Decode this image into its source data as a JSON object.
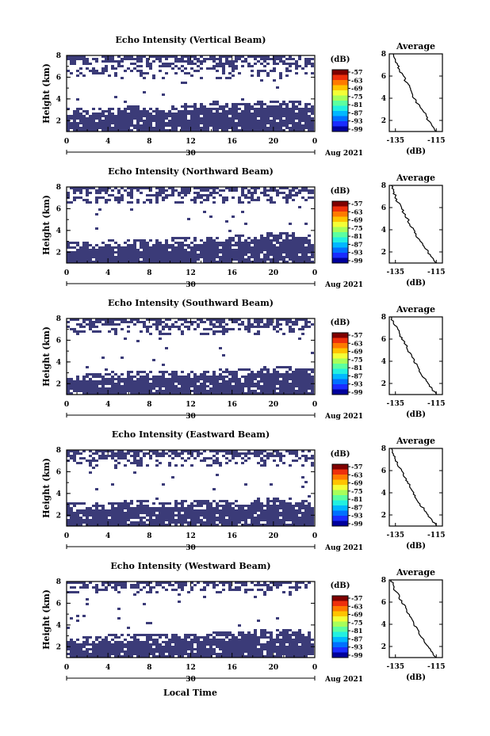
{
  "figure": {
    "xlabel_global": "Local Time",
    "cbar_unit": "(dB)",
    "cbar_ticks": [
      "-57",
      "-63",
      "-69",
      "-75",
      "-81",
      "-87",
      "-93",
      "-99"
    ],
    "cbar_colors": [
      "#7f0000",
      "#ee2f0c",
      "#ff7a00",
      "#ffc400",
      "#f4ff36",
      "#a8ff5a",
      "#5cffa0",
      "#22f0e0",
      "#00b8ff",
      "#0070ff",
      "#1a2cff",
      "#00009c"
    ],
    "fill_color": "#3b3b78",
    "date_label": "Aug 2021",
    "day_label": "30"
  },
  "chart_data": [
    {
      "type": "heatmap",
      "title": "Echo Intensity (Vertical Beam)",
      "ylabel": "Height (km)",
      "x_ticks": [
        "0",
        "4",
        "8",
        "12",
        "16",
        "20",
        "0"
      ],
      "y_ticks": [
        "2",
        "4",
        "6",
        "8"
      ],
      "xlim": [
        0,
        24
      ],
      "ylim": [
        1,
        8
      ],
      "cbar_range": [
        -99,
        -57
      ],
      "dense_top_km": [
        3.0,
        3.0,
        3.0,
        3.3,
        3.1,
        3.2,
        3.5,
        3.6,
        3.6,
        3.6,
        3.8,
        3.8,
        3.6
      ],
      "sparse_band_km": [
        6.0,
        8.0
      ],
      "average_profile": {
        "title": "Average",
        "xlabel": "(dB)",
        "x_ticks": [
          "-135",
          "-115"
        ],
        "y_ticks": [
          "2",
          "4",
          "6",
          "8"
        ],
        "xlim": [
          -138,
          -112
        ],
        "ylim": [
          1,
          8
        ],
        "heights_km": [
          8.0,
          7.5,
          7.0,
          6.5,
          6.0,
          5.5,
          5.0,
          4.5,
          4.0,
          3.5,
          3.0,
          2.5,
          2.0,
          1.5,
          1.0
        ],
        "values_db": [
          -136,
          -135,
          -134,
          -133,
          -131,
          -130,
          -128,
          -127,
          -126,
          -124,
          -122,
          -120,
          -119,
          -117,
          -115
        ]
      }
    },
    {
      "type": "heatmap",
      "title": "Echo Intensity (Northward Beam)",
      "ylabel": "Height (km)",
      "x_ticks": [
        "0",
        "4",
        "8",
        "12",
        "16",
        "20",
        "0"
      ],
      "y_ticks": [
        "2",
        "4",
        "6",
        "8"
      ],
      "xlim": [
        0,
        24
      ],
      "ylim": [
        1,
        8
      ],
      "cbar_range": [
        -99,
        -57
      ],
      "dense_top_km": [
        2.8,
        2.8,
        3.0,
        3.1,
        3.0,
        3.2,
        3.3,
        3.3,
        3.4,
        3.5,
        3.7,
        3.7,
        3.4
      ],
      "sparse_band_km": [
        6.5,
        8.0
      ],
      "average_profile": {
        "title": "Average",
        "xlabel": "(dB)",
        "x_ticks": [
          "-135",
          "-115"
        ],
        "y_ticks": [
          "2",
          "4",
          "6",
          "8"
        ],
        "xlim": [
          -138,
          -112
        ],
        "ylim": [
          1,
          8
        ],
        "heights_km": [
          8.0,
          7.5,
          7.0,
          6.5,
          6.0,
          5.5,
          5.0,
          4.5,
          4.0,
          3.5,
          3.0,
          2.5,
          2.0,
          1.5,
          1.0
        ],
        "values_db": [
          -137,
          -136,
          -135,
          -134,
          -132,
          -131,
          -129,
          -128,
          -126,
          -125,
          -123,
          -121,
          -119,
          -117,
          -115
        ]
      }
    },
    {
      "type": "heatmap",
      "title": "Echo Intensity (Southward Beam)",
      "ylabel": "Height (km)",
      "x_ticks": [
        "0",
        "4",
        "8",
        "12",
        "16",
        "20",
        "0"
      ],
      "y_ticks": [
        "2",
        "4",
        "6",
        "8"
      ],
      "xlim": [
        0,
        24
      ],
      "ylim": [
        1,
        8
      ],
      "cbar_range": [
        -99,
        -57
      ],
      "dense_top_km": [
        2.7,
        2.8,
        2.9,
        3.0,
        3.0,
        3.1,
        3.2,
        3.2,
        3.3,
        3.3,
        3.5,
        3.5,
        3.3
      ],
      "sparse_band_km": [
        6.5,
        8.0
      ],
      "average_profile": {
        "title": "Average",
        "xlabel": "(dB)",
        "x_ticks": [
          "-135",
          "-115"
        ],
        "y_ticks": [
          "2",
          "4",
          "6",
          "8"
        ],
        "xlim": [
          -138,
          -112
        ],
        "ylim": [
          1,
          8
        ],
        "heights_km": [
          8.0,
          7.5,
          7.0,
          6.5,
          6.0,
          5.5,
          5.0,
          4.5,
          4.0,
          3.5,
          3.0,
          2.5,
          2.0,
          1.5,
          1.0
        ],
        "values_db": [
          -137,
          -136,
          -134,
          -133,
          -132,
          -130,
          -129,
          -127,
          -126,
          -124,
          -123,
          -121,
          -119,
          -117,
          -115
        ]
      }
    },
    {
      "type": "heatmap",
      "title": "Echo Intensity (Eastward Beam)",
      "ylabel": "Height (km)",
      "x_ticks": [
        "0",
        "4",
        "8",
        "12",
        "16",
        "20",
        "0"
      ],
      "y_ticks": [
        "2",
        "4",
        "6",
        "8"
      ],
      "xlim": [
        0,
        24
      ],
      "ylim": [
        1,
        8
      ],
      "cbar_range": [
        -99,
        -57
      ],
      "dense_top_km": [
        3.0,
        3.0,
        3.0,
        3.3,
        3.2,
        3.2,
        3.3,
        3.3,
        3.4,
        3.4,
        3.5,
        3.5,
        3.3
      ],
      "sparse_band_km": [
        6.5,
        8.0
      ],
      "average_profile": {
        "title": "Average",
        "xlabel": "(dB)",
        "x_ticks": [
          "-135",
          "-115"
        ],
        "y_ticks": [
          "2",
          "4",
          "6",
          "8"
        ],
        "xlim": [
          -138,
          -112
        ],
        "ylim": [
          1,
          8
        ],
        "heights_km": [
          8.0,
          7.5,
          7.0,
          6.5,
          6.0,
          5.5,
          5.0,
          4.5,
          4.0,
          3.5,
          3.0,
          2.5,
          2.0,
          1.5,
          1.0
        ],
        "values_db": [
          -137,
          -136,
          -135,
          -134,
          -132,
          -131,
          -129,
          -128,
          -126,
          -125,
          -123,
          -121,
          -119,
          -117,
          -115
        ]
      }
    },
    {
      "type": "heatmap",
      "title": "Echo Intensity (Westward Beam)",
      "ylabel": "Height (km)",
      "x_ticks": [
        "0",
        "4",
        "8",
        "12",
        "16",
        "20",
        "0"
      ],
      "y_ticks": [
        "2",
        "4",
        "6",
        "8"
      ],
      "xlim": [
        0,
        24
      ],
      "ylim": [
        1,
        8
      ],
      "cbar_range": [
        -99,
        -57
      ],
      "dense_top_km": [
        2.7,
        2.8,
        3.0,
        3.1,
        3.0,
        3.1,
        3.2,
        3.2,
        3.3,
        3.4,
        3.6,
        3.6,
        3.3
      ],
      "sparse_band_km": [
        7.0,
        8.0
      ],
      "average_profile": {
        "title": "Average",
        "xlabel": "(dB)",
        "x_ticks": [
          "-135",
          "-115"
        ],
        "y_ticks": [
          "2",
          "4",
          "6",
          "8"
        ],
        "xlim": [
          -138,
          -112
        ],
        "ylim": [
          1,
          8
        ],
        "heights_km": [
          8.0,
          7.5,
          7.0,
          6.5,
          6.0,
          5.5,
          5.0,
          4.5,
          4.0,
          3.5,
          3.0,
          2.5,
          2.0,
          1.5,
          1.0
        ],
        "values_db": [
          -137,
          -136,
          -135,
          -133,
          -132,
          -130,
          -129,
          -127,
          -126,
          -124,
          -123,
          -121,
          -119,
          -117,
          -115
        ]
      }
    }
  ]
}
